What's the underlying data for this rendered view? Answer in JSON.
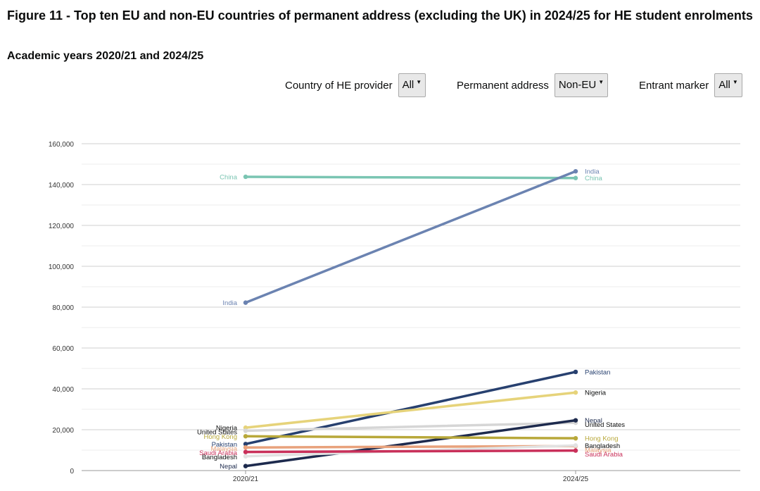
{
  "title": "Figure 11 - Top ten EU and non-EU countries of permanent address (excluding the UK) in 2024/25 for HE student enrolments",
  "subtitle": "Academic years 2020/21 and 2024/25",
  "filters": [
    {
      "label": "Country of HE provider",
      "value": "All"
    },
    {
      "label": "Permanent address",
      "value": "Non-EU"
    },
    {
      "label": "Entrant marker",
      "value": "All"
    }
  ],
  "chart_data": {
    "type": "line",
    "categories": [
      "2020/21",
      "2024/25"
    ],
    "ylim": [
      0,
      160000
    ],
    "yticks": [
      0,
      20000,
      40000,
      60000,
      80000,
      100000,
      120000,
      140000,
      160000
    ],
    "ytick_labels": [
      "0",
      "20,000",
      "40,000",
      "60,000",
      "80,000",
      "100,000",
      "120,000",
      "140,000",
      "160,000"
    ],
    "grid": true,
    "series": [
      {
        "name": "China",
        "values": [
          143800,
          143200
        ],
        "color": "#7ac5b2"
      },
      {
        "name": "India",
        "values": [
          82200,
          146500
        ],
        "color": "#6b83b1"
      },
      {
        "name": "Pakistan",
        "values": [
          13000,
          48300
        ],
        "color": "#27406f"
      },
      {
        "name": "Nigeria",
        "values": [
          21000,
          38200
        ],
        "color": "#e6d37a",
        "label_color": "#0b0c0c"
      },
      {
        "name": "United States",
        "values": [
          19500,
          23400
        ],
        "color": "#d6d6d6",
        "label_color": "#0b0c0c"
      },
      {
        "name": "Nepal",
        "values": [
          2200,
          24600
        ],
        "color": "#1d2a4d"
      },
      {
        "name": "Hong Kong",
        "values": [
          16800,
          15800
        ],
        "color": "#b8a83a"
      },
      {
        "name": "Malaysia",
        "values": [
          11300,
          12000
        ],
        "color": "#e8a27c"
      },
      {
        "name": "Bangladesh",
        "values": [
          7000,
          12300
        ],
        "color": "#e2e2e2",
        "label_color": "#0b0c0c"
      },
      {
        "name": "Saudi Arabia",
        "values": [
          9100,
          9800
        ],
        "color": "#c9305a"
      }
    ]
  }
}
